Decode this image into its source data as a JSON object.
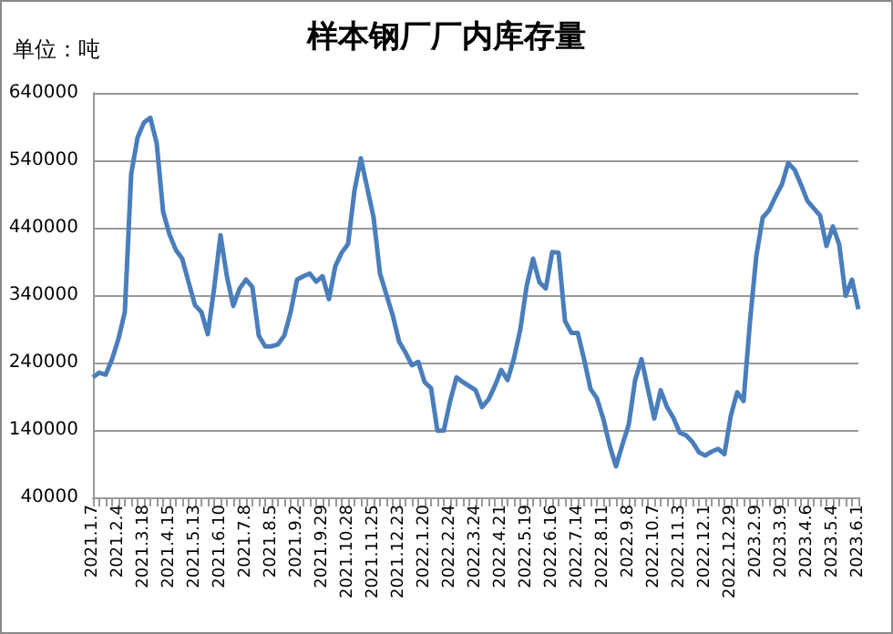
{
  "chart_data": {
    "type": "line",
    "title": "样本钢厂厂内库存量",
    "ylabel": "单位：吨",
    "categories": [
      "2021.1.7",
      null,
      null,
      null,
      "2021.2.4",
      null,
      null,
      null,
      "2021.3.18",
      null,
      null,
      null,
      "2021.4.15",
      null,
      null,
      null,
      "2021.5.13",
      null,
      null,
      null,
      "2021.6.10",
      null,
      null,
      null,
      "2021.7.8",
      null,
      null,
      null,
      "2021.8.5",
      null,
      null,
      null,
      "2021.9.2",
      null,
      null,
      null,
      "2021.9.29",
      null,
      null,
      null,
      "2021.10.28",
      null,
      null,
      null,
      "2021.11.25",
      null,
      null,
      null,
      "2021.12.23",
      null,
      null,
      null,
      "2022.1.20",
      null,
      null,
      null,
      "2022.2.24",
      null,
      null,
      null,
      "2022.3.24",
      null,
      null,
      null,
      "2022.4.21",
      null,
      null,
      null,
      "2022.5.19",
      null,
      null,
      null,
      "2022.6.16",
      null,
      null,
      null,
      "2022.7.14",
      null,
      null,
      null,
      "2022.8.11",
      null,
      null,
      null,
      "2022.9.8",
      null,
      null,
      null,
      "2022.10.7",
      null,
      null,
      null,
      "2022.11.3",
      null,
      null,
      null,
      "2022.12.1",
      null,
      null,
      null,
      "2022.12.29",
      null,
      null,
      null,
      "2023.2.9",
      null,
      null,
      null,
      "2023.3.9",
      null,
      null,
      null,
      "2023.4.6",
      null,
      null,
      null,
      "2023.5.4",
      null,
      null,
      null,
      "2023.6.1"
    ],
    "series": [
      {
        "color": "#4a7ebb",
        "values": [
          218000,
          225000,
          222000,
          245000,
          275000,
          315000,
          520000,
          574000,
          596000,
          603000,
          565000,
          464000,
          430000,
          407000,
          394000,
          359000,
          325000,
          315000,
          282000,
          350000,
          429000,
          368000,
          324000,
          350000,
          363000,
          352000,
          280000,
          264000,
          264000,
          267000,
          280000,
          315000,
          363000,
          368000,
          372000,
          360000,
          368000,
          334000,
          383000,
          403000,
          416000,
          495000,
          543000,
          499000,
          455000,
          372000,
          341000,
          310000,
          271000,
          255000,
          236000,
          241000,
          211000,
          202000,
          139000,
          139000,
          183000,
          218000,
          211000,
          205000,
          199000,
          174000,
          185000,
          205000,
          229000,
          214000,
          246000,
          289000,
          354000,
          394000,
          359000,
          350000,
          404000,
          403000,
          302000,
          284000,
          284000,
          245000,
          201000,
          187000,
          157000,
          117000,
          86000,
          118000,
          148000,
          214000,
          245000,
          201000,
          157000,
          199000,
          174000,
          158000,
          136000,
          132000,
          122000,
          107000,
          102000,
          108000,
          112000,
          104000,
          161000,
          196000,
          183000,
          300000,
          398000,
          455000,
          466000,
          486000,
          504000,
          536000,
          526000,
          504000,
          480000,
          469000,
          458000,
          413000,
          442000,
          415000,
          339000,
          363000,
          319000
        ]
      }
    ],
    "ylim": [
      40000,
      640000
    ],
    "yticks": [
      40000,
      140000,
      240000,
      340000,
      440000,
      540000,
      640000
    ],
    "grid": "y",
    "marker": "none",
    "line_style": "solid"
  }
}
